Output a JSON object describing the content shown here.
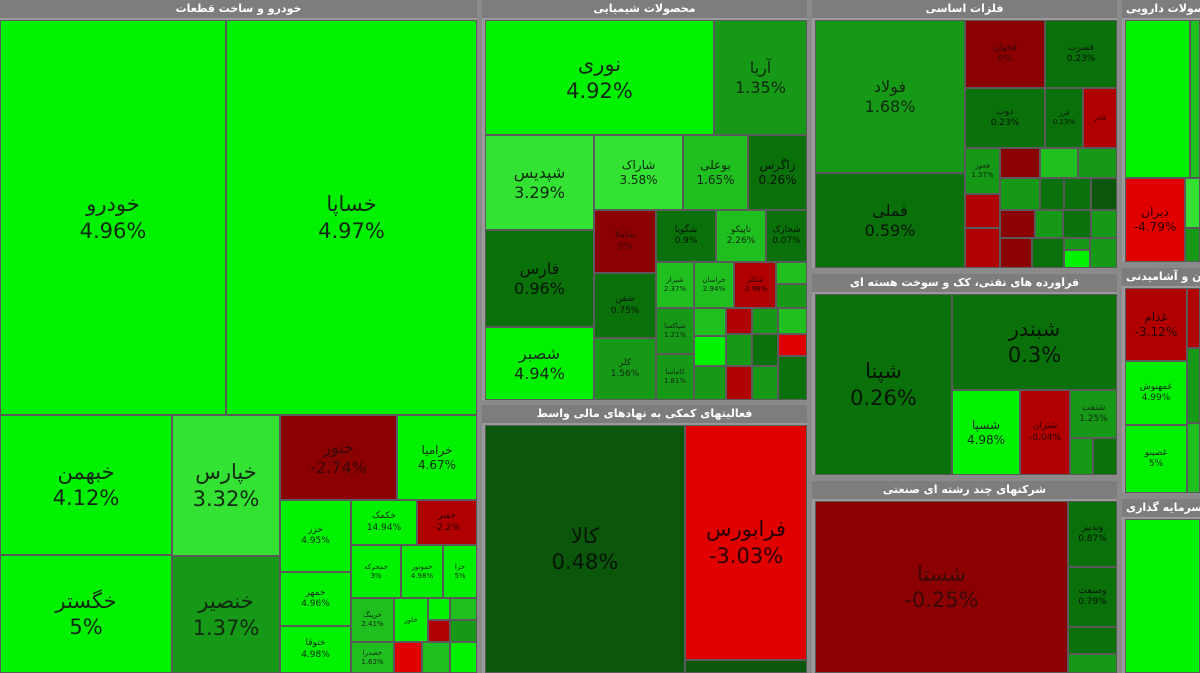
{
  "sectors": {
    "auto": {
      "title": "خودرو و ساخت قطعات"
    },
    "chem": {
      "title": "محصولات شیمیایی"
    },
    "metal": {
      "title": "فلزات اساسی"
    },
    "pharma": {
      "title": "مواد و محصولات دارویی"
    },
    "oil": {
      "title": "فراورده های نفتی، کک و سوخت هسته ای"
    },
    "finaid": {
      "title": "فعالیتهای کمکی به نهادهای مالی واسط"
    },
    "multi": {
      "title": "شرکتهای چند رشته ای صنعتی"
    },
    "hotel": {
      "title": "هتل و رستوران و آشامیدنی"
    },
    "invest": {
      "title": "سرمایه گذاری"
    }
  },
  "tiles": [
    {
      "symbol": "خودرو",
      "change": "4.96%",
      "status": "up"
    },
    {
      "symbol": "خساپا",
      "change": "4.97%",
      "status": "up"
    },
    {
      "symbol": "خبهمن",
      "change": "4.12%",
      "status": "up"
    },
    {
      "symbol": "خگستر",
      "change": "5%",
      "status": "up"
    },
    {
      "symbol": "خپارس",
      "change": "3.32%",
      "status": "up"
    },
    {
      "symbol": "خنصیر",
      "change": "1.37%",
      "status": "up"
    },
    {
      "symbol": "ختور",
      "change": "-2.74%",
      "status": "down"
    },
    {
      "symbol": "خرامیا",
      "change": "4.67%",
      "status": "up"
    },
    {
      "symbol": "خزر",
      "change": "4.95%",
      "status": "up"
    },
    {
      "symbol": "خمهر",
      "change": "4.96%",
      "status": "up"
    },
    {
      "symbol": "ختوقا",
      "change": "4.98%",
      "status": "up"
    },
    {
      "symbol": "خکمک",
      "change": "14.94%",
      "status": "up"
    },
    {
      "symbol": "خفنر",
      "change": "-2.2%",
      "status": "down"
    },
    {
      "symbol": "خمحرکه",
      "change": "3%",
      "status": "up"
    },
    {
      "symbol": "خموتور",
      "change": "4.98%",
      "status": "up"
    },
    {
      "symbol": "خزا",
      "change": "5%",
      "status": "up"
    },
    {
      "symbol": "خرینگ",
      "change": "2.41%",
      "status": "up"
    },
    {
      "symbol": "خاور",
      "change": "",
      "status": "up"
    },
    {
      "symbol": "خصدرا",
      "change": "1.62%",
      "status": "up"
    },
    {
      "symbol": "نوری",
      "change": "4.92%",
      "status": "up"
    },
    {
      "symbol": "آریا",
      "change": "1.35%",
      "status": "up"
    },
    {
      "symbol": "شپدیس",
      "change": "3.29%",
      "status": "up"
    },
    {
      "symbol": "شاراک",
      "change": "3.58%",
      "status": "up"
    },
    {
      "symbol": "بوعلی",
      "change": "1.65%",
      "status": "up"
    },
    {
      "symbol": "زاگرس",
      "change": "0.26%",
      "status": "up"
    },
    {
      "symbol": "فارس",
      "change": "0.96%",
      "status": "up"
    },
    {
      "symbol": "شصبر",
      "change": "4.94%",
      "status": "up"
    },
    {
      "symbol": "شاملا",
      "change": "0%",
      "status": "flat"
    },
    {
      "symbol": "شگویا",
      "change": "0.9%",
      "status": "up"
    },
    {
      "symbol": "تاپیکو",
      "change": "2.26%",
      "status": "up"
    },
    {
      "symbol": "شخارک",
      "change": "0.07%",
      "status": "up"
    },
    {
      "symbol": "شفن",
      "change": "0.75%",
      "status": "up"
    },
    {
      "symbol": "کلر",
      "change": "1.56%",
      "status": "up"
    },
    {
      "symbol": "شیراز",
      "change": "2.37%",
      "status": "up"
    },
    {
      "symbol": "خراسان",
      "change": "2.94%",
      "status": "up"
    },
    {
      "symbol": "شکلر",
      "change": "-2.96%",
      "status": "down"
    },
    {
      "symbol": "شپاکسا",
      "change": "1.21%",
      "status": "up"
    },
    {
      "symbol": "کاماسا",
      "change": "1.81%",
      "status": "up"
    },
    {
      "symbol": "فولاد",
      "change": "1.68%",
      "status": "up"
    },
    {
      "symbol": "فملی",
      "change": "0.59%",
      "status": "up"
    },
    {
      "symbol": "فجهان",
      "change": "0%",
      "status": "flat"
    },
    {
      "symbol": "فسرب",
      "change": "0.23%",
      "status": "up"
    },
    {
      "symbol": "ذوب",
      "change": "0.23%",
      "status": "up"
    },
    {
      "symbol": "فزر",
      "change": "0.13%",
      "status": "up"
    },
    {
      "symbol": "فاذر",
      "change": "",
      "status": "down"
    },
    {
      "symbol": "فخوز",
      "change": "1.37%",
      "status": "up"
    },
    {
      "symbol": "دیران",
      "change": "-4.79%",
      "status": "down"
    },
    {
      "symbol": "شبندر",
      "change": "0.3%",
      "status": "up"
    },
    {
      "symbol": "شپنا",
      "change": "0.26%",
      "status": "up"
    },
    {
      "symbol": "شسپا",
      "change": "4.98%",
      "status": "up"
    },
    {
      "symbol": "شتران",
      "change": "-0.04%",
      "status": "down"
    },
    {
      "symbol": "شنفت",
      "change": "1.25%",
      "status": "up"
    },
    {
      "symbol": "کالا",
      "change": "0.48%",
      "status": "up"
    },
    {
      "symbol": "فرابورس",
      "change": "-3.03%",
      "status": "down"
    },
    {
      "symbol": "شستا",
      "change": "-0.25%",
      "status": "down"
    },
    {
      "symbol": "وتدبیر",
      "change": "0.87%",
      "status": "up"
    },
    {
      "symbol": "وصنعت",
      "change": "0.79%",
      "status": "up"
    },
    {
      "symbol": "غدام",
      "change": "-3.12%",
      "status": "down"
    },
    {
      "symbol": "غمهنوش",
      "change": "4.99%",
      "status": "up"
    },
    {
      "symbol": "غصینو",
      "change": "5%",
      "status": "up"
    }
  ]
}
